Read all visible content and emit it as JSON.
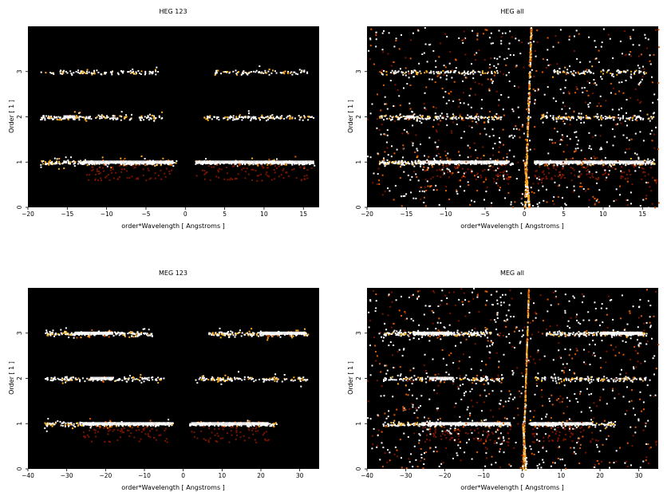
{
  "chart_data": [
    {
      "type": "heatmap",
      "title": "HEG 123",
      "xlabel": "order*Wavelength [ Angstroms ]",
      "ylabel": "Order [ 1 ]",
      "xlim": [
        -20,
        17
      ],
      "ylim": [
        0,
        4
      ],
      "xticks": [
        -20,
        -15,
        -10,
        -5,
        0,
        5,
        10,
        15
      ],
      "yticks": [
        0,
        1,
        2,
        3
      ],
      "bands": [
        {
          "order": 1,
          "segments": [
            [
              -18.5,
              -1.2,
              0.55
            ],
            [
              1.2,
              16.5,
              0.45
            ]
          ],
          "core": [
            [
              -13.0,
              -1.5
            ],
            [
              1.3,
              16.0
            ]
          ]
        },
        {
          "order": 2,
          "segments": [
            [
              -18.5,
              -3.0,
              0.35
            ],
            [
              2.2,
              16.5,
              0.3
            ]
          ],
          "core": [
            [
              -15.5,
              -14.0
            ]
          ]
        },
        {
          "order": 3,
          "segments": [
            [
              -18.5,
              -3.5,
              0.22
            ],
            [
              3.5,
              15.5,
              0.22
            ]
          ],
          "core": []
        }
      ],
      "ramps": []
    },
    {
      "type": "heatmap",
      "title": "HEG all",
      "xlabel": "order*Wavelength [ Angstroms ]",
      "ylabel": "Order [ 1 ]",
      "xlim": [
        -20,
        17
      ],
      "ylim": [
        0,
        4
      ],
      "xticks": [
        -20,
        -15,
        -10,
        -5,
        0,
        5,
        10,
        15
      ],
      "yticks": [
        0,
        1,
        2,
        3
      ],
      "bands": [
        {
          "order": 1,
          "segments": [
            [
              -18.5,
              -1.5,
              0.55
            ],
            [
              1.2,
              16.5,
              0.45
            ]
          ],
          "core": [
            [
              -13.0,
              -2.0
            ],
            [
              1.2,
              16.0
            ]
          ]
        },
        {
          "order": 2,
          "segments": [
            [
              -18.5,
              -3.0,
              0.35
            ],
            [
              2.0,
              16.5,
              0.3
            ]
          ],
          "core": [
            [
              -15.0,
              -14.0
            ]
          ]
        },
        {
          "order": 3,
          "segments": [
            [
              -18.5,
              -3.5,
              0.22
            ],
            [
              3.5,
              15.5,
              0.22
            ]
          ],
          "core": []
        }
      ],
      "ramps": [
        [
          0.8,
          4.9
        ],
        [
          0.4,
          -0.9
        ]
      ]
    },
    {
      "type": "heatmap",
      "title": "MEG 123",
      "xlabel": "order*Wavelength [ Angstroms ]",
      "ylabel": "Order [ 1 ]",
      "xlim": [
        -40,
        35
      ],
      "ylim": [
        0,
        4
      ],
      "xticks": [
        -40,
        -30,
        -20,
        -10,
        0,
        10,
        20,
        30
      ],
      "yticks": [
        0,
        1,
        2,
        3
      ],
      "bands": [
        {
          "order": 1,
          "segments": [
            [
              -36.0,
              -2.5,
              0.45
            ],
            [
              1.5,
              24.0,
              0.45
            ]
          ],
          "core": [
            [
              -26.0,
              -3.0
            ],
            [
              2.0,
              22.0
            ]
          ]
        },
        {
          "order": 2,
          "segments": [
            [
              -36.0,
              -5.0,
              0.3
            ],
            [
              3.0,
              32.0,
              0.3
            ]
          ],
          "core": [
            [
              -24.0,
              -18.0
            ]
          ]
        },
        {
          "order": 3,
          "segments": [
            [
              -36.0,
              -8.0,
              0.5
            ],
            [
              6.0,
              32.0,
              0.5
            ]
          ],
          "core": [
            [
              -28.0,
              -18.0
            ],
            [
              20.0,
              31.0
            ]
          ]
        }
      ],
      "ramps": []
    },
    {
      "type": "heatmap",
      "title": "MEG all",
      "xlabel": "order*Wavelength [ Angstroms ]",
      "ylabel": "Order [ 1 ]",
      "xlim": [
        -40,
        35
      ],
      "ylim": [
        0,
        4
      ],
      "xticks": [
        -40,
        -30,
        -20,
        -10,
        0,
        10,
        20,
        30
      ],
      "yticks": [
        0,
        1,
        2,
        3
      ],
      "bands": [
        {
          "order": 1,
          "segments": [
            [
              -36.0,
              -3.0,
              0.45
            ],
            [
              1.5,
              24.0,
              0.45
            ]
          ],
          "core": [
            [
              -26.0,
              -3.0
            ],
            [
              2.0,
              18.0
            ]
          ]
        },
        {
          "order": 2,
          "segments": [
            [
              -36.0,
              -5.0,
              0.3
            ],
            [
              3.0,
              32.0,
              0.3
            ]
          ],
          "core": [
            [
              -24.0,
              -18.0
            ]
          ]
        },
        {
          "order": 3,
          "segments": [
            [
              -36.0,
              -8.0,
              0.5
            ],
            [
              6.0,
              32.0,
              0.5
            ]
          ],
          "core": [
            [
              -28.0,
              -18.0
            ],
            [
              20.0,
              31.0
            ]
          ]
        }
      ],
      "ramps": [
        [
          1.5,
          4.5
        ],
        [
          0.6,
          -1.2
        ]
      ]
    }
  ],
  "colors": {
    "background": "#000000",
    "low": "#7a1400",
    "mid": "#e05a00",
    "high": "#ffb020",
    "peak": "#ffffff"
  }
}
